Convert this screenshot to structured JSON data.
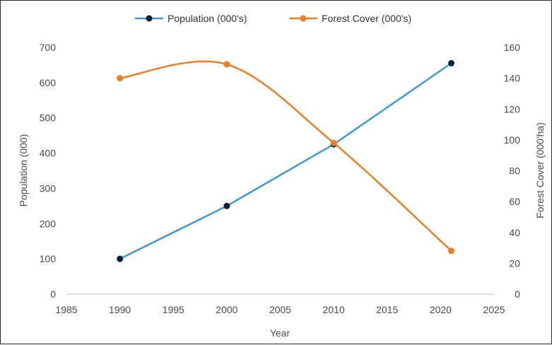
{
  "chart_data": {
    "type": "line",
    "title": "",
    "xlabel": "Year",
    "ylabel_left": "Population (000)",
    "ylabel_right": "Forest Cover (000'ha)",
    "xlim": [
      1985,
      2025
    ],
    "xticks": [
      1985,
      1990,
      1995,
      2000,
      2005,
      2010,
      2015,
      2020,
      2025
    ],
    "ylim_left": [
      0,
      700
    ],
    "yticks_left": [
      0,
      100,
      200,
      300,
      400,
      500,
      600,
      700
    ],
    "ylim_right": [
      0,
      160
    ],
    "yticks_right": [
      0,
      20,
      40,
      60,
      80,
      100,
      120,
      140,
      160
    ],
    "grid": false,
    "legend_position": "top-center",
    "series": [
      {
        "name": "Population (000's)",
        "axis": "left",
        "color": "#3a9ad9",
        "marker_color": "#0b1f3a",
        "smooth": false,
        "x": [
          1990,
          2000,
          2010,
          2021
        ],
        "y": [
          100,
          250,
          425,
          655
        ]
      },
      {
        "name": "Forest Cover  (000's)",
        "axis": "right",
        "color": "#ef7d22",
        "marker_color": "#ef7d22",
        "smooth": true,
        "x": [
          1990,
          2000,
          2010,
          2021
        ],
        "y": [
          140,
          149,
          98,
          28
        ]
      }
    ]
  }
}
